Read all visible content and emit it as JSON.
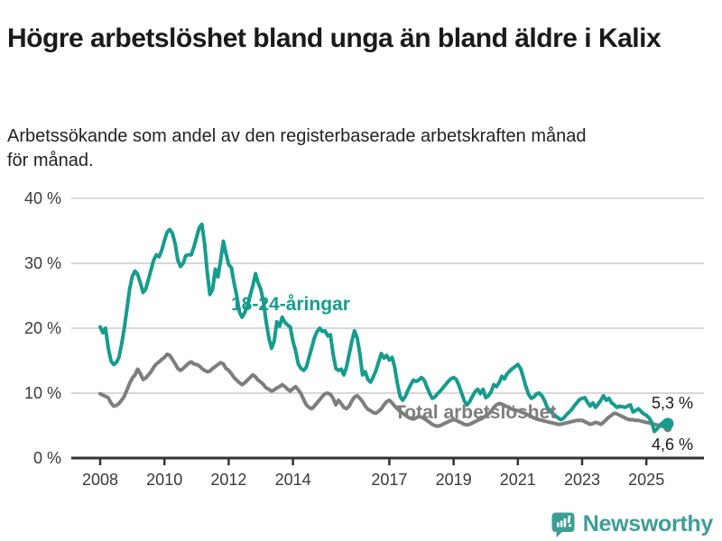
{
  "header": {
    "title": "Högre arbetslöshet bland unga än bland äldre i Kalix",
    "subtitle": "Arbetssökande som andel av den registerbaserade arbetskraften månad för månad."
  },
  "chart_data": {
    "type": "line",
    "title": "Högre arbetslöshet bland unga än bland äldre i Kalix",
    "unit": "%",
    "x_start": 2008,
    "x_step_months": 1,
    "x_end_label_period": "2025",
    "ylim": [
      0,
      40
    ],
    "grid": true,
    "grid_color": "#d8d8d8",
    "axis_color": "#333333",
    "tick_color": "#3a3a3a",
    "y_ticks": [
      {
        "value": 0,
        "label": "0 %"
      },
      {
        "value": 10,
        "label": "10 %"
      },
      {
        "value": 20,
        "label": "20 %"
      },
      {
        "value": 30,
        "label": "30 %"
      },
      {
        "value": 40,
        "label": "40 %"
      }
    ],
    "x_ticks": [
      {
        "value": 2008,
        "label": "2008"
      },
      {
        "value": 2010,
        "label": "2010"
      },
      {
        "value": 2012,
        "label": "2012"
      },
      {
        "value": 2014,
        "label": "2014"
      },
      {
        "value": 2017,
        "label": "2017"
      },
      {
        "value": 2019,
        "label": "2019"
      },
      {
        "value": 2021,
        "label": "2021"
      },
      {
        "value": 2023,
        "label": "2023"
      },
      {
        "value": 2025,
        "label": "2025"
      }
    ],
    "series": [
      {
        "name": "18-24-åringar",
        "color": "#169c8e",
        "end_label": "5,3 %",
        "end_value": 5.3,
        "values": [
          20.2,
          19.3,
          20.0,
          17.0,
          15.0,
          14.4,
          14.7,
          15.5,
          17.5,
          20.0,
          23.0,
          26.0,
          28.0,
          28.8,
          28.3,
          27.0,
          25.5,
          26.0,
          27.5,
          29.0,
          30.5,
          31.3,
          31.0,
          32.0,
          33.5,
          34.8,
          35.2,
          34.6,
          33.0,
          30.5,
          29.5,
          30.0,
          31.2,
          31.3,
          31.3,
          32.5,
          34.0,
          35.5,
          36.0,
          33.0,
          28.5,
          25.2,
          26.0,
          29.1,
          27.9,
          30.5,
          33.4,
          31.5,
          29.8,
          29.3,
          27.0,
          25.0,
          22.5,
          21.7,
          22.4,
          23.5,
          25.0,
          26.5,
          28.4,
          27.0,
          26.0,
          24.0,
          21.0,
          18.5,
          16.9,
          18.0,
          21.0,
          20.3,
          21.7,
          20.9,
          20.5,
          20.2,
          18.0,
          16.5,
          14.5,
          13.8,
          13.5,
          14.0,
          15.5,
          17.0,
          18.5,
          19.5,
          20.0,
          19.5,
          19.6,
          18.8,
          19.0,
          16.0,
          13.8,
          13.5,
          13.7,
          12.8,
          14.0,
          16.0,
          18.0,
          19.6,
          18.5,
          16.0,
          12.8,
          13.3,
          12.1,
          11.7,
          12.5,
          13.5,
          14.8,
          16.1,
          15.4,
          15.8,
          15.1,
          15.5,
          14.0,
          11.5,
          9.5,
          8.9,
          9.5,
          10.5,
          11.3,
          12.0,
          11.8,
          12.0,
          12.4,
          12.0,
          11.0,
          10.0,
          9.2,
          9.4,
          9.9,
          10.3,
          10.8,
          11.3,
          11.8,
          12.2,
          12.4,
          12.1,
          11.2,
          10.0,
          8.8,
          8.2,
          8.7,
          9.5,
          10.2,
          10.6,
          9.9,
          10.6,
          9.3,
          9.6,
          10.2,
          11.3,
          11.0,
          11.6,
          12.6,
          12.2,
          13.0,
          13.4,
          13.8,
          14.1,
          14.4,
          13.8,
          12.5,
          11.0,
          9.8,
          9.2,
          9.4,
          9.9,
          10.0,
          9.6,
          8.8,
          7.8,
          7.2,
          6.9,
          6.5,
          6.2,
          5.9,
          6.1,
          6.6,
          7.0,
          7.4,
          8.0,
          8.5,
          9.0,
          9.2,
          9.3,
          8.6,
          8.0,
          8.5,
          7.8,
          8.3,
          8.9,
          9.6,
          8.9,
          9.2,
          8.5,
          8.2,
          7.8,
          8.0,
          7.9,
          7.8,
          8.0,
          8.2,
          7.1,
          7.3,
          7.6,
          7.2,
          6.8,
          6.6,
          6.2,
          5.5,
          4.1,
          4.5,
          5.0,
          5.4,
          5.6,
          5.3
        ]
      },
      {
        "name": "Total arbetslöshet",
        "color": "#7e7e7e",
        "end_label": "4,6 %",
        "end_value": 4.6,
        "values": [
          9.9,
          9.7,
          9.5,
          9.3,
          8.5,
          8.0,
          8.1,
          8.4,
          8.9,
          9.5,
          10.5,
          11.5,
          12.3,
          12.8,
          13.7,
          13.0,
          12.1,
          12.3,
          12.8,
          13.3,
          14.0,
          14.5,
          14.8,
          15.2,
          15.5,
          16.0,
          15.8,
          15.2,
          14.5,
          13.8,
          13.5,
          13.8,
          14.2,
          14.6,
          14.8,
          14.5,
          14.4,
          14.2,
          13.8,
          13.5,
          13.3,
          13.4,
          13.8,
          14.1,
          14.4,
          14.7,
          14.5,
          13.8,
          13.5,
          13.0,
          12.4,
          12.0,
          11.6,
          11.3,
          11.6,
          12.0,
          12.4,
          12.8,
          12.5,
          12.0,
          11.7,
          11.3,
          10.8,
          10.6,
          10.3,
          10.5,
          10.8,
          11.0,
          11.3,
          11.0,
          10.6,
          10.3,
          10.7,
          11.0,
          10.5,
          9.9,
          9.0,
          8.2,
          7.8,
          7.6,
          8.0,
          8.5,
          9.0,
          9.5,
          9.9,
          10.0,
          9.8,
          9.2,
          8.2,
          8.9,
          8.4,
          7.8,
          7.6,
          8.0,
          8.8,
          9.4,
          9.6,
          9.2,
          8.7,
          8.0,
          7.5,
          7.3,
          7.0,
          6.9,
          7.2,
          7.6,
          8.2,
          8.7,
          8.9,
          8.5,
          8.0,
          7.6,
          7.2,
          6.9,
          6.6,
          6.3,
          6.1,
          6.0,
          6.2,
          6.4,
          6.3,
          6.1,
          5.8,
          5.5,
          5.2,
          5.0,
          4.9,
          5.0,
          5.2,
          5.4,
          5.6,
          5.8,
          5.9,
          5.8,
          5.6,
          5.4,
          5.2,
          5.1,
          5.2,
          5.4,
          5.6,
          5.8,
          6.0,
          6.2,
          6.5,
          6.8,
          7.2,
          7.8,
          8.2,
          8.4,
          8.3,
          8.1,
          7.9,
          7.7,
          7.5,
          7.4,
          7.3,
          7.2,
          7.0,
          6.8,
          6.6,
          6.4,
          6.2,
          6.0,
          5.9,
          5.8,
          5.7,
          5.6,
          5.5,
          5.4,
          5.3,
          5.2,
          5.2,
          5.3,
          5.4,
          5.5,
          5.6,
          5.7,
          5.8,
          5.8,
          5.8,
          5.6,
          5.4,
          5.2,
          5.3,
          5.5,
          5.4,
          5.2,
          5.5,
          5.9,
          6.3,
          6.6,
          6.9,
          6.8,
          6.6,
          6.4,
          6.2,
          6.0,
          5.9,
          5.9,
          5.8,
          5.8,
          5.7,
          5.6,
          5.5,
          5.4,
          5.3,
          5.2,
          5.1,
          5.0,
          4.9,
          4.7,
          4.6
        ]
      }
    ]
  },
  "footer": {
    "brand": "Newsworthy",
    "logo_color": "#3d9e96"
  }
}
